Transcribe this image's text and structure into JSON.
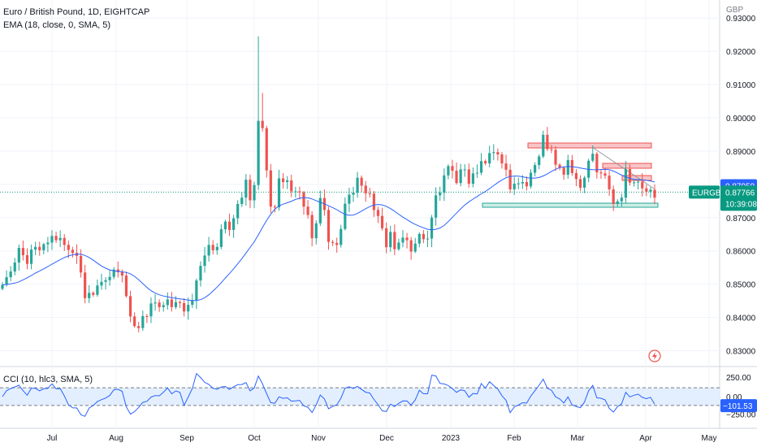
{
  "header": {
    "title": "Euro / British Pound, 1D, EIGHTCAP",
    "indicator": "EMA (18, close, 0, SMA, 5)"
  },
  "price_scale": {
    "currency": "GBP",
    "ticks": [
      "0.93000",
      "0.92000",
      "0.91000",
      "0.90000",
      "0.89000",
      "0.88000",
      "0.87000",
      "0.86000",
      "0.85000",
      "0.84000",
      "0.83000"
    ],
    "symbol_tag": "EURGBP",
    "ema_value": "0.87959",
    "last_price": "0.87766",
    "countdown": "10:39:08"
  },
  "cci": {
    "label": "CCI (10, hlc3, SMA, 5)",
    "ticks": [
      "250.00",
      "0.00",
      "−250.00"
    ],
    "value": "−101.53"
  },
  "time_axis": [
    "Jul",
    "Aug",
    "Sep",
    "Oct",
    "Nov",
    "Dec",
    "2023",
    "Feb",
    "Mar",
    "Apr",
    "May"
  ],
  "colors": {
    "up": "#26a69a",
    "down": "#ef5350",
    "ema": "#2962ff",
    "cci_line": "#2962ff",
    "zone_red": "#f7c5c8",
    "zone_green": "#cdeee5",
    "last_tag": "#089981",
    "ema_tag": "#2962ff"
  },
  "chart_data": {
    "type": "candlestick",
    "y_range": [
      0.8245,
      0.9345
    ],
    "closes": [
      0.8498,
      0.8521,
      0.8538,
      0.8565,
      0.8609,
      0.8587,
      0.8561,
      0.8604,
      0.8612,
      0.8602,
      0.862,
      0.8625,
      0.8645,
      0.8632,
      0.8639,
      0.8618,
      0.8603,
      0.8594,
      0.8585,
      0.8535,
      0.8458,
      0.8474,
      0.8468,
      0.8496,
      0.8507,
      0.8512,
      0.8522,
      0.8544,
      0.8536,
      0.8526,
      0.8464,
      0.8403,
      0.8374,
      0.8368,
      0.8404,
      0.8403,
      0.8442,
      0.8445,
      0.8431,
      0.8437,
      0.8454,
      0.8431,
      0.8446,
      0.8443,
      0.8418,
      0.8438,
      0.8451,
      0.8511,
      0.8555,
      0.8586,
      0.8618,
      0.8602,
      0.8612,
      0.8665,
      0.8688,
      0.8663,
      0.8698,
      0.8741,
      0.876,
      0.8814,
      0.8752,
      0.8798,
      0.8991,
      0.8969,
      0.8842,
      0.8733,
      0.8731,
      0.8818,
      0.8807,
      0.8812,
      0.8779,
      0.8779,
      0.8776,
      0.8733,
      0.8708,
      0.8638,
      0.8683,
      0.8759,
      0.8723,
      0.8627,
      0.8624,
      0.8618,
      0.8666,
      0.8742,
      0.8769,
      0.8775,
      0.882,
      0.8796,
      0.8773,
      0.8772,
      0.8723,
      0.8705,
      0.8668,
      0.8611,
      0.8657,
      0.8605,
      0.8625,
      0.864,
      0.8632,
      0.8598,
      0.8622,
      0.8651,
      0.8635,
      0.8637,
      0.87,
      0.8767,
      0.8775,
      0.8827,
      0.8855,
      0.8841,
      0.8804,
      0.8845,
      0.8845,
      0.8802,
      0.8833,
      0.8835,
      0.887,
      0.8863,
      0.8894,
      0.8897,
      0.889,
      0.8863,
      0.8844,
      0.8785,
      0.8802,
      0.8803,
      0.8807,
      0.8794,
      0.8835,
      0.8858,
      0.8884,
      0.8949,
      0.8906,
      0.8904,
      0.8859,
      0.885,
      0.8829,
      0.8873,
      0.8834,
      0.8816,
      0.879,
      0.882,
      0.8871,
      0.8892,
      0.8836,
      0.8833,
      0.8826,
      0.8785,
      0.8741,
      0.8749,
      0.876,
      0.8846,
      0.8805,
      0.8806,
      0.8808,
      0.8788,
      0.8778,
      0.8784,
      0.876
    ]
  }
}
